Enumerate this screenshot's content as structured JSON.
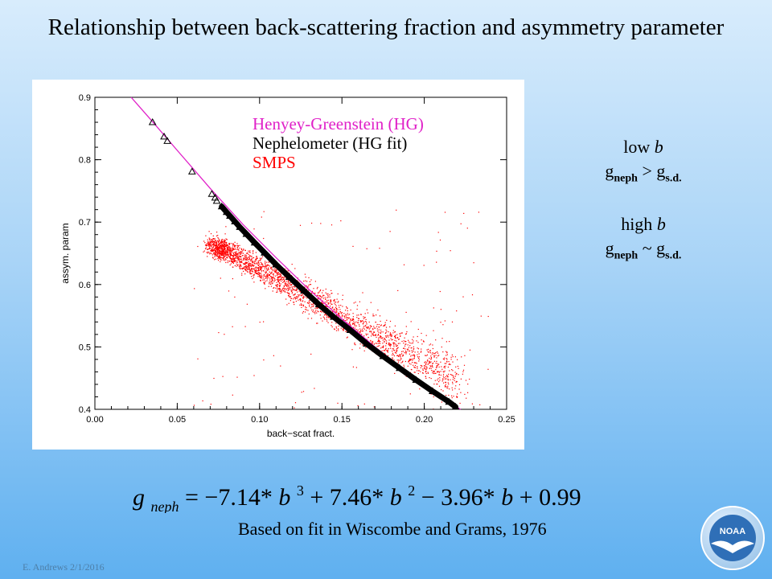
{
  "slide": {
    "title": "Relationship between back-scattering fraction and asymmetry parameter",
    "footer": "E. Andrews   2/1/2016",
    "logo_text": "NOAA",
    "citation": "Based on fit in Wiscombe and Grams, 1976"
  },
  "notes": {
    "low": {
      "line1_prefix": "low ",
      "line1_var": "b",
      "g1": "g",
      "sub1": "neph",
      "op": " > ",
      "g2": "g",
      "sub2": "s.d."
    },
    "high": {
      "line1_prefix": "high ",
      "line1_var": "b",
      "g1": "g",
      "sub1": "neph",
      "op": " ~ ",
      "g2": "g",
      "sub2": "s.d."
    }
  },
  "formula": {
    "lhs_g": "g",
    "lhs_sub": "neph",
    "eq": " = −7.14*",
    "b1": "b",
    "exp1": "3",
    "t2": " + 7.46*",
    "b2": "b",
    "exp2": "2",
    "t3": " − 3.96*",
    "b3": "b",
    "t4": " + 0.99"
  },
  "chart_data": {
    "type": "scatter",
    "title": "",
    "xlabel": "back−scat fract.",
    "ylabel": "assym. param",
    "xlim": [
      0.0,
      0.25
    ],
    "ylim": [
      0.4,
      0.9
    ],
    "x_ticks": [
      "0.00",
      "0.05",
      "0.10",
      "0.15",
      "0.20",
      "0.25"
    ],
    "y_ticks": [
      "0.4",
      "0.5",
      "0.6",
      "0.7",
      "0.8",
      "0.9"
    ],
    "grid": false,
    "legend_position": "top-right",
    "colors": {
      "hg": "#e020c8",
      "neph": "#000000",
      "smps": "#ff0000"
    },
    "series": [
      {
        "name": "Henyey-Greenstein (HG)",
        "kind": "line",
        "x": [
          0.022,
          0.035,
          0.05,
          0.07,
          0.09,
          0.11,
          0.13,
          0.15,
          0.17,
          0.19,
          0.21,
          0.222
        ],
        "y": [
          0.9,
          0.861,
          0.815,
          0.754,
          0.696,
          0.643,
          0.592,
          0.545,
          0.5,
          0.459,
          0.42,
          0.4
        ]
      },
      {
        "name": "Nephelometer (HG fit)",
        "kind": "markers",
        "x": [
          0.035,
          0.042,
          0.044,
          0.059,
          0.071,
          0.073,
          0.074,
          0.077,
          0.08,
          0.082,
          0.085,
          0.088,
          0.092,
          0.097,
          0.103,
          0.11,
          0.118,
          0.127,
          0.136,
          0.145,
          0.155,
          0.165,
          0.175,
          0.185,
          0.195,
          0.205,
          0.215,
          0.219
        ],
        "y": [
          0.86,
          0.837,
          0.83,
          0.781,
          0.745,
          0.739,
          0.734,
          0.725,
          0.716,
          0.71,
          0.701,
          0.692,
          0.681,
          0.667,
          0.651,
          0.632,
          0.612,
          0.59,
          0.568,
          0.548,
          0.527,
          0.505,
          0.485,
          0.466,
          0.447,
          0.429,
          0.412,
          0.404
        ]
      },
      {
        "name": "SMPS",
        "kind": "cloud",
        "note": "dense point cloud",
        "x": [
          0.07,
          0.08,
          0.09,
          0.1,
          0.11,
          0.12,
          0.13,
          0.14,
          0.15,
          0.16,
          0.17,
          0.18,
          0.19,
          0.2,
          0.21,
          0.22
        ],
        "y": [
          0.663,
          0.655,
          0.64,
          0.625,
          0.61,
          0.595,
          0.58,
          0.565,
          0.55,
          0.535,
          0.52,
          0.505,
          0.49,
          0.477,
          0.464,
          0.452
        ]
      }
    ]
  }
}
